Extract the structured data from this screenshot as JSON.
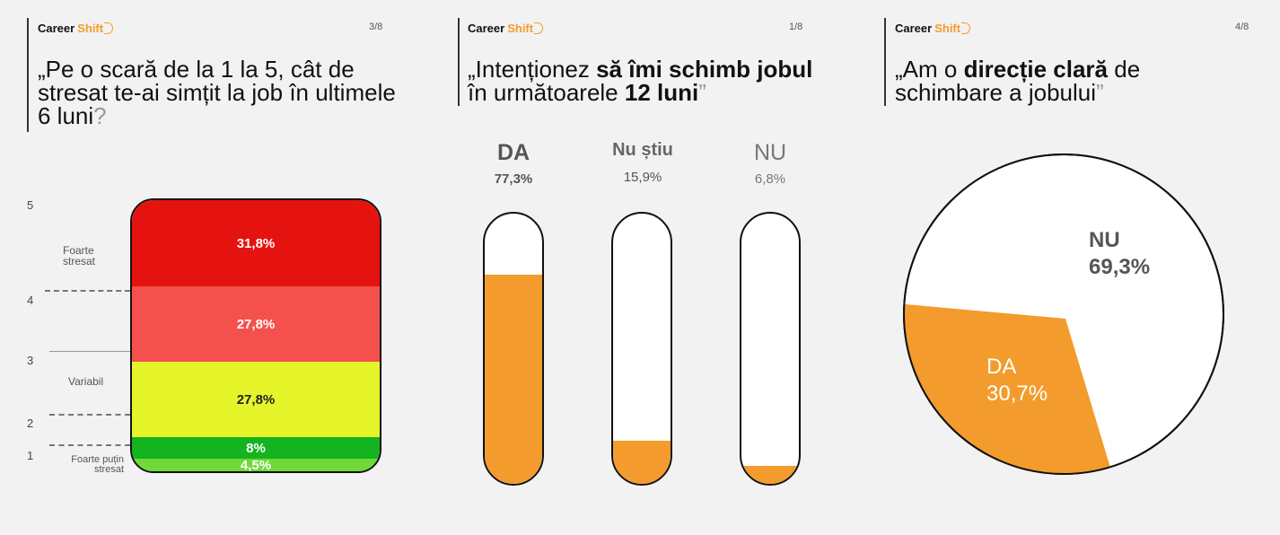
{
  "brand": {
    "career": "Career",
    "shift": "Shift"
  },
  "panels": [
    {
      "page": "3/8",
      "title_parts": [
        {
          "t": "„Pe o scară de la 1 la 5, cât de stresat te-ai simțit la job în ultimele 6 luni",
          "b": false
        },
        {
          "t": "?",
          "b": false,
          "q": true
        }
      ],
      "scale_numbers": [
        "5",
        "4",
        "3",
        "2",
        "1"
      ],
      "scale_labels": {
        "top": "Foarte stresat",
        "mid": "Variabil",
        "bottom": "Foarte puțin stresat"
      }
    },
    {
      "page": "1/8",
      "title_parts": [
        {
          "t": "„Intenționez ",
          "b": false
        },
        {
          "t": "să îmi schimb jobul",
          "b": true
        },
        {
          "t": " în următoarele ",
          "b": false
        },
        {
          "t": "12 luni",
          "b": true
        },
        {
          "t": "”",
          "b": false,
          "q": true
        }
      ]
    },
    {
      "page": "4/8",
      "title_parts": [
        {
          "t": "„Am o ",
          "b": false
        },
        {
          "t": "direcție clară",
          "b": true
        },
        {
          "t": " de schimbare a jobului",
          "b": false
        },
        {
          "t": "”",
          "b": false,
          "q": true
        }
      ]
    }
  ],
  "chart_data": [
    {
      "type": "bar",
      "stacked": true,
      "categories": [
        "5",
        "4",
        "3",
        "2",
        "1"
      ],
      "values": [
        31.8,
        27.8,
        27.8,
        8,
        4.5
      ],
      "labels": [
        "31,8%",
        "27,8%",
        "27,8%",
        "8%",
        "4,5%"
      ],
      "colors": [
        "#e5130f",
        "#f4504c",
        "#e5f52a",
        "#14b320",
        "#6ed939"
      ]
    },
    {
      "type": "bar",
      "categories": [
        "DA",
        "Nu știu",
        "NU"
      ],
      "values": [
        77.3,
        15.9,
        6.8
      ],
      "labels": [
        "77,3%",
        "15,9%",
        "6,8%"
      ],
      "color": "#f39b2c"
    },
    {
      "type": "pie",
      "categories": [
        "NU",
        "DA"
      ],
      "values": [
        69.3,
        30.7
      ],
      "labels": [
        "69,3%",
        "30,7%"
      ],
      "colors": [
        "#ffffff",
        "#f39b2c"
      ]
    }
  ]
}
